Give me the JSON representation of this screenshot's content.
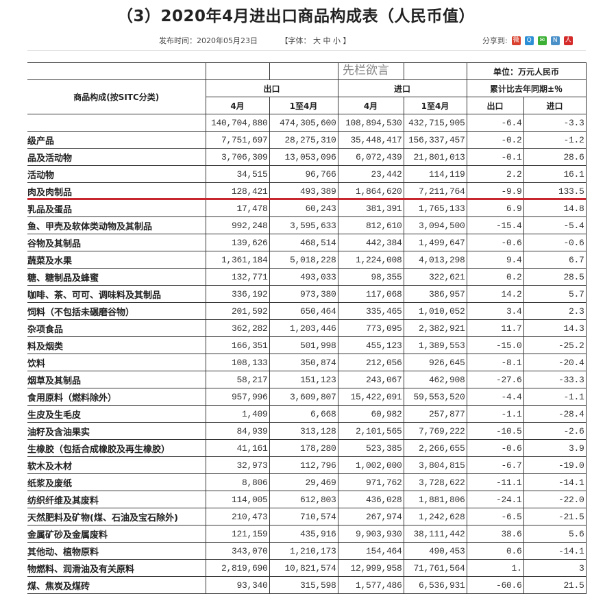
{
  "title": "（3）2020年4月进出口商品构成表（人民币值）",
  "meta": {
    "publish_time": "发布时间：2020年05月23日",
    "font_size": "【字体： 大 中 小 】"
  },
  "share": {
    "label": "分享到:",
    "icons": [
      "weibo-icon",
      "qzone-icon",
      "wechat-icon",
      "tencent-weibo-icon",
      "renren-icon"
    ],
    "colors": [
      "#d9412e",
      "#2c8fd6",
      "#3cb034",
      "#4a90c8",
      "#d52a2a"
    ]
  },
  "table": {
    "unit": "单位：万元人民币",
    "col_header": "商品构成(按SITC分类)",
    "export": "出口",
    "import": "进口",
    "yoy": "累计比去年同期±％",
    "sub": [
      "4月",
      "1至4月",
      "4月",
      "1至4月",
      "出口",
      "进口"
    ],
    "rows": [
      [
        "",
        "140,704,880",
        "474,305,600",
        "108,894,530",
        "432,715,905",
        "-6.4",
        "-3.3"
      ],
      [
        "级产品",
        "7,751,697",
        "28,275,310",
        "35,448,417",
        "156,337,457",
        "-0.2",
        "-1.2"
      ],
      [
        "品及活动物",
        "3,706,309",
        "13,053,096",
        "6,072,439",
        "21,801,013",
        "-0.1",
        "28.6"
      ],
      [
        "活动物",
        "34,515",
        "96,766",
        "23,442",
        "114,119",
        "2.2",
        "16.1"
      ],
      [
        "肉及肉制品",
        "128,421",
        "493,389",
        "1,864,620",
        "7,211,764",
        "-9.9",
        "133.5"
      ],
      [
        "乳品及蛋品",
        "17,478",
        "60,243",
        "381,391",
        "1,765,133",
        "6.9",
        "14.8"
      ],
      [
        "鱼、甲壳及软体类动物及其制品",
        "992,248",
        "3,595,633",
        "812,610",
        "3,094,500",
        "-15.4",
        "-5.4"
      ],
      [
        "谷物及其制品",
        "139,626",
        "468,514",
        "442,384",
        "1,499,647",
        "-0.6",
        "-0.6"
      ],
      [
        "蔬菜及水果",
        "1,361,184",
        "5,018,228",
        "1,224,008",
        "4,013,298",
        "9.4",
        "6.7"
      ],
      [
        "糖、糖制品及蜂蜜",
        "132,771",
        "493,033",
        "98,355",
        "322,621",
        "0.2",
        "28.5"
      ],
      [
        "咖啡、茶、可可、调味料及其制品",
        "336,192",
        "973,380",
        "117,068",
        "386,957",
        "14.2",
        "5.7"
      ],
      [
        "饲料（不包括未碾磨谷物）",
        "201,592",
        "650,464",
        "335,465",
        "1,010,052",
        "3.4",
        "2.3"
      ],
      [
        "杂项食品",
        "362,282",
        "1,203,446",
        "773,095",
        "2,382,921",
        "11.7",
        "14.3"
      ],
      [
        "料及烟类",
        "166,351",
        "501,998",
        "455,123",
        "1,389,553",
        "-15.0",
        "-25.2"
      ],
      [
        "饮料",
        "108,133",
        "350,874",
        "212,056",
        "926,645",
        "-8.1",
        "-20.4"
      ],
      [
        "烟草及其制品",
        "58,217",
        "151,123",
        "243,067",
        "462,908",
        "-27.6",
        "-33.3"
      ],
      [
        "食用原料（燃料除外）",
        "957,996",
        "3,609,807",
        "15,422,091",
        "59,553,520",
        "-4.4",
        "-1.1"
      ],
      [
        "生皮及生毛皮",
        "1,409",
        "6,668",
        "60,982",
        "257,877",
        "-1.1",
        "-28.4"
      ],
      [
        "油籽及含油果实",
        "84,939",
        "313,128",
        "2,101,565",
        "7,769,222",
        "-10.5",
        "-2.6"
      ],
      [
        "生橡胶（包括合成橡胶及再生橡胶）",
        "41,161",
        "178,280",
        "523,385",
        "2,266,655",
        "-0.6",
        "3.9"
      ],
      [
        "软木及木材",
        "32,973",
        "112,796",
        "1,002,000",
        "3,804,815",
        "-6.7",
        "-19.0"
      ],
      [
        "纸浆及废纸",
        "8,806",
        "29,469",
        "971,762",
        "3,728,622",
        "-11.1",
        "-14.1"
      ],
      [
        "纺织纤维及其废料",
        "114,005",
        "612,803",
        "436,028",
        "1,881,806",
        "-24.1",
        "-22.0"
      ],
      [
        "天然肥料及矿物(煤、石油及宝石除外)",
        "210,473",
        "710,574",
        "267,974",
        "1,242,628",
        "-6.5",
        "-21.5"
      ],
      [
        "金属矿砂及金属废料",
        "121,159",
        "435,916",
        "9,903,930",
        "38,111,442",
        "38.6",
        "5.6"
      ],
      [
        "其他动、植物原料",
        "343,070",
        "1,210,173",
        "154,464",
        "490,453",
        "0.6",
        "-14.1"
      ],
      [
        "物燃料、润滑油及有关原料",
        "2,819,690",
        "10,821,574",
        "12,999,958",
        "71,761,564",
        "1.",
        "3"
      ],
      [
        "煤、焦炭及煤砖",
        "93,340",
        "315,598",
        "1,577,486",
        "6,536,931",
        "-60.6",
        "21.5"
      ]
    ]
  },
  "highlight_color": "#c8262e",
  "watermark": "先栏欲言"
}
